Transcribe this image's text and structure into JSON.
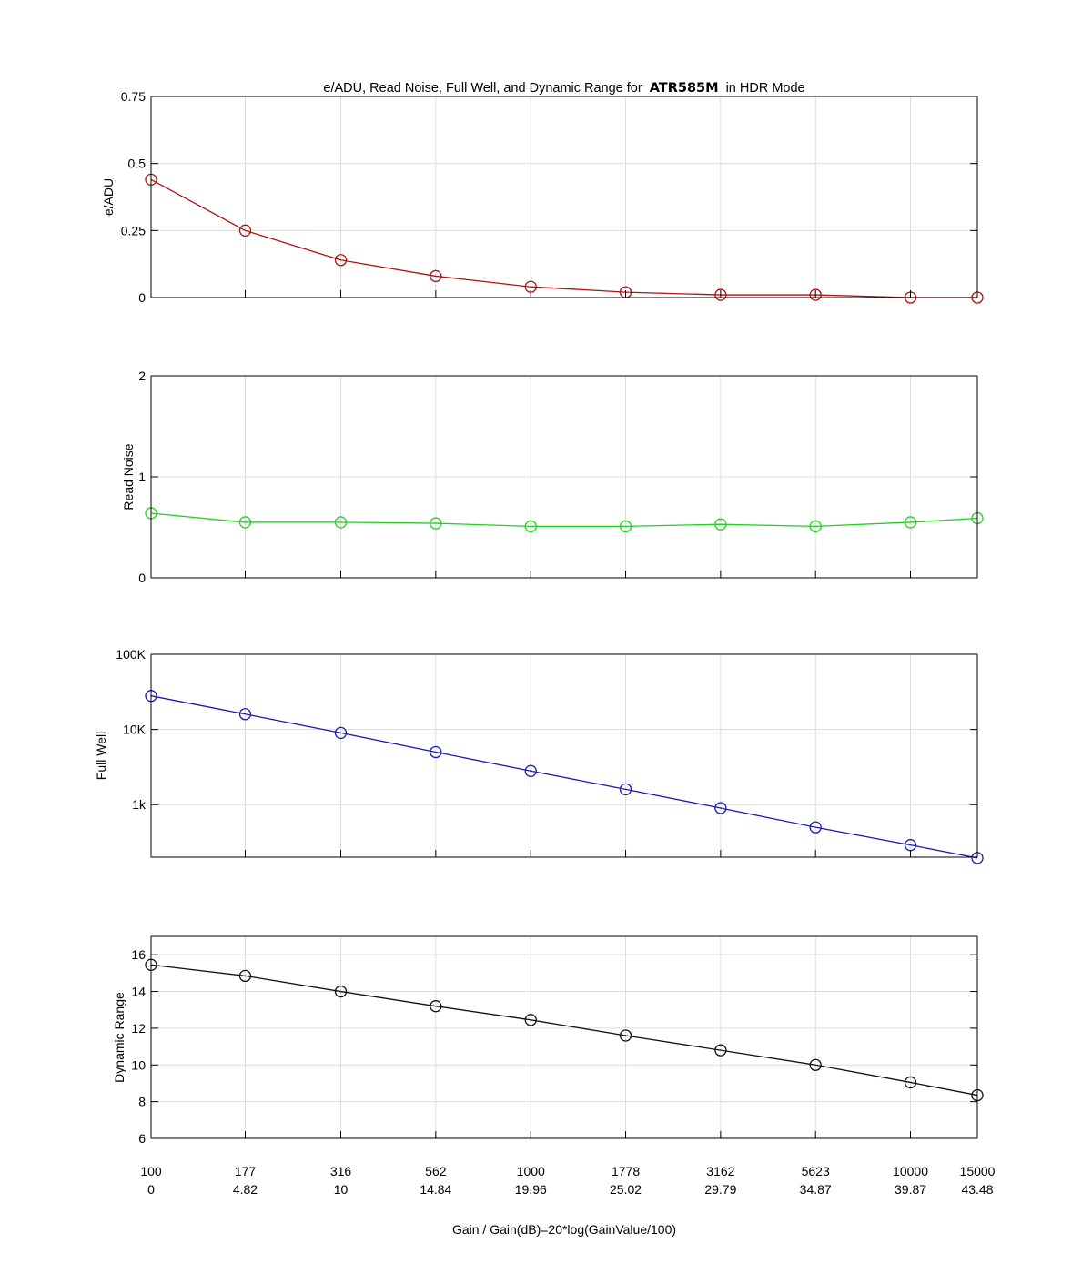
{
  "figure": {
    "title_prefix": "e/ADU, Read Noise, Full Well, and Dynamic Range for",
    "title_model": "ATR585M",
    "title_suffix": "in HDR Mode",
    "xlabel": "Gain / Gain(dB)=20*log(GainValue/100)"
  },
  "x_axis": {
    "gain_labels": [
      "100",
      "177",
      "316",
      "562",
      "1000",
      "1778",
      "3162",
      "5623",
      "10000",
      "15000"
    ],
    "gain_db_labels": [
      "0",
      "4.82",
      "10",
      "14.84",
      "19.96",
      "25.02",
      "29.79",
      "34.87",
      "39.87",
      "43.48"
    ],
    "scale": "log"
  },
  "chart_data": [
    {
      "type": "line",
      "ylabel": "e/ADU",
      "x": [
        100,
        177,
        316,
        562,
        1000,
        1778,
        3162,
        5623,
        10000,
        15000
      ],
      "series": [
        {
          "values": [
            0.44,
            0.25,
            0.14,
            0.08,
            0.04,
            0.02,
            0.01,
            0.01,
            0.0,
            0.0
          ],
          "color": "#b01010"
        }
      ],
      "ylim": [
        0,
        0.75
      ],
      "yscale": "linear",
      "yticks": [
        0,
        0.25,
        0.5,
        0.75
      ],
      "ytick_labels": [
        "0",
        "0.25",
        "0.5",
        "0.75"
      ],
      "marker": "circle",
      "grid": true
    },
    {
      "type": "line",
      "ylabel": "Read Noise",
      "x": [
        100,
        177,
        316,
        562,
        1000,
        1778,
        3162,
        5623,
        10000,
        15000
      ],
      "series": [
        {
          "values": [
            0.64,
            0.55,
            0.55,
            0.54,
            0.51,
            0.51,
            0.53,
            0.51,
            0.55,
            0.59
          ],
          "color": "#22d022"
        }
      ],
      "ylim": [
        0,
        2
      ],
      "yscale": "linear",
      "yticks": [
        0,
        1,
        2
      ],
      "ytick_labels": [
        "0",
        "1",
        "2"
      ],
      "marker": "circle",
      "grid": true
    },
    {
      "type": "line",
      "ylabel": "Full Well",
      "x": [
        100,
        177,
        316,
        562,
        1000,
        1778,
        3162,
        5623,
        10000,
        15000
      ],
      "series": [
        {
          "values": [
            28000,
            16000,
            9000,
            5000,
            2800,
            1600,
            900,
            500,
            290,
            195
          ],
          "color": "#1a1ab0"
        }
      ],
      "ylim": [
        200,
        100000
      ],
      "yscale": "log",
      "yticks": [
        1000,
        10000,
        100000
      ],
      "ytick_labels": [
        "1k",
        "10K",
        "100K"
      ],
      "marker": "circle",
      "grid": true
    },
    {
      "type": "line",
      "ylabel": "Dynamic Range",
      "x": [
        100,
        177,
        316,
        562,
        1000,
        1778,
        3162,
        5623,
        10000,
        15000
      ],
      "series": [
        {
          "values": [
            15.45,
            14.85,
            14.0,
            13.2,
            12.45,
            11.6,
            10.8,
            10.0,
            9.05,
            8.35
          ],
          "color": "#111111"
        }
      ],
      "ylim": [
        6,
        17
      ],
      "yscale": "linear",
      "yticks": [
        6,
        8,
        10,
        12,
        14,
        16
      ],
      "ytick_labels": [
        "6",
        "8",
        "10",
        "12",
        "14",
        "16"
      ],
      "marker": "circle",
      "grid": true
    }
  ]
}
